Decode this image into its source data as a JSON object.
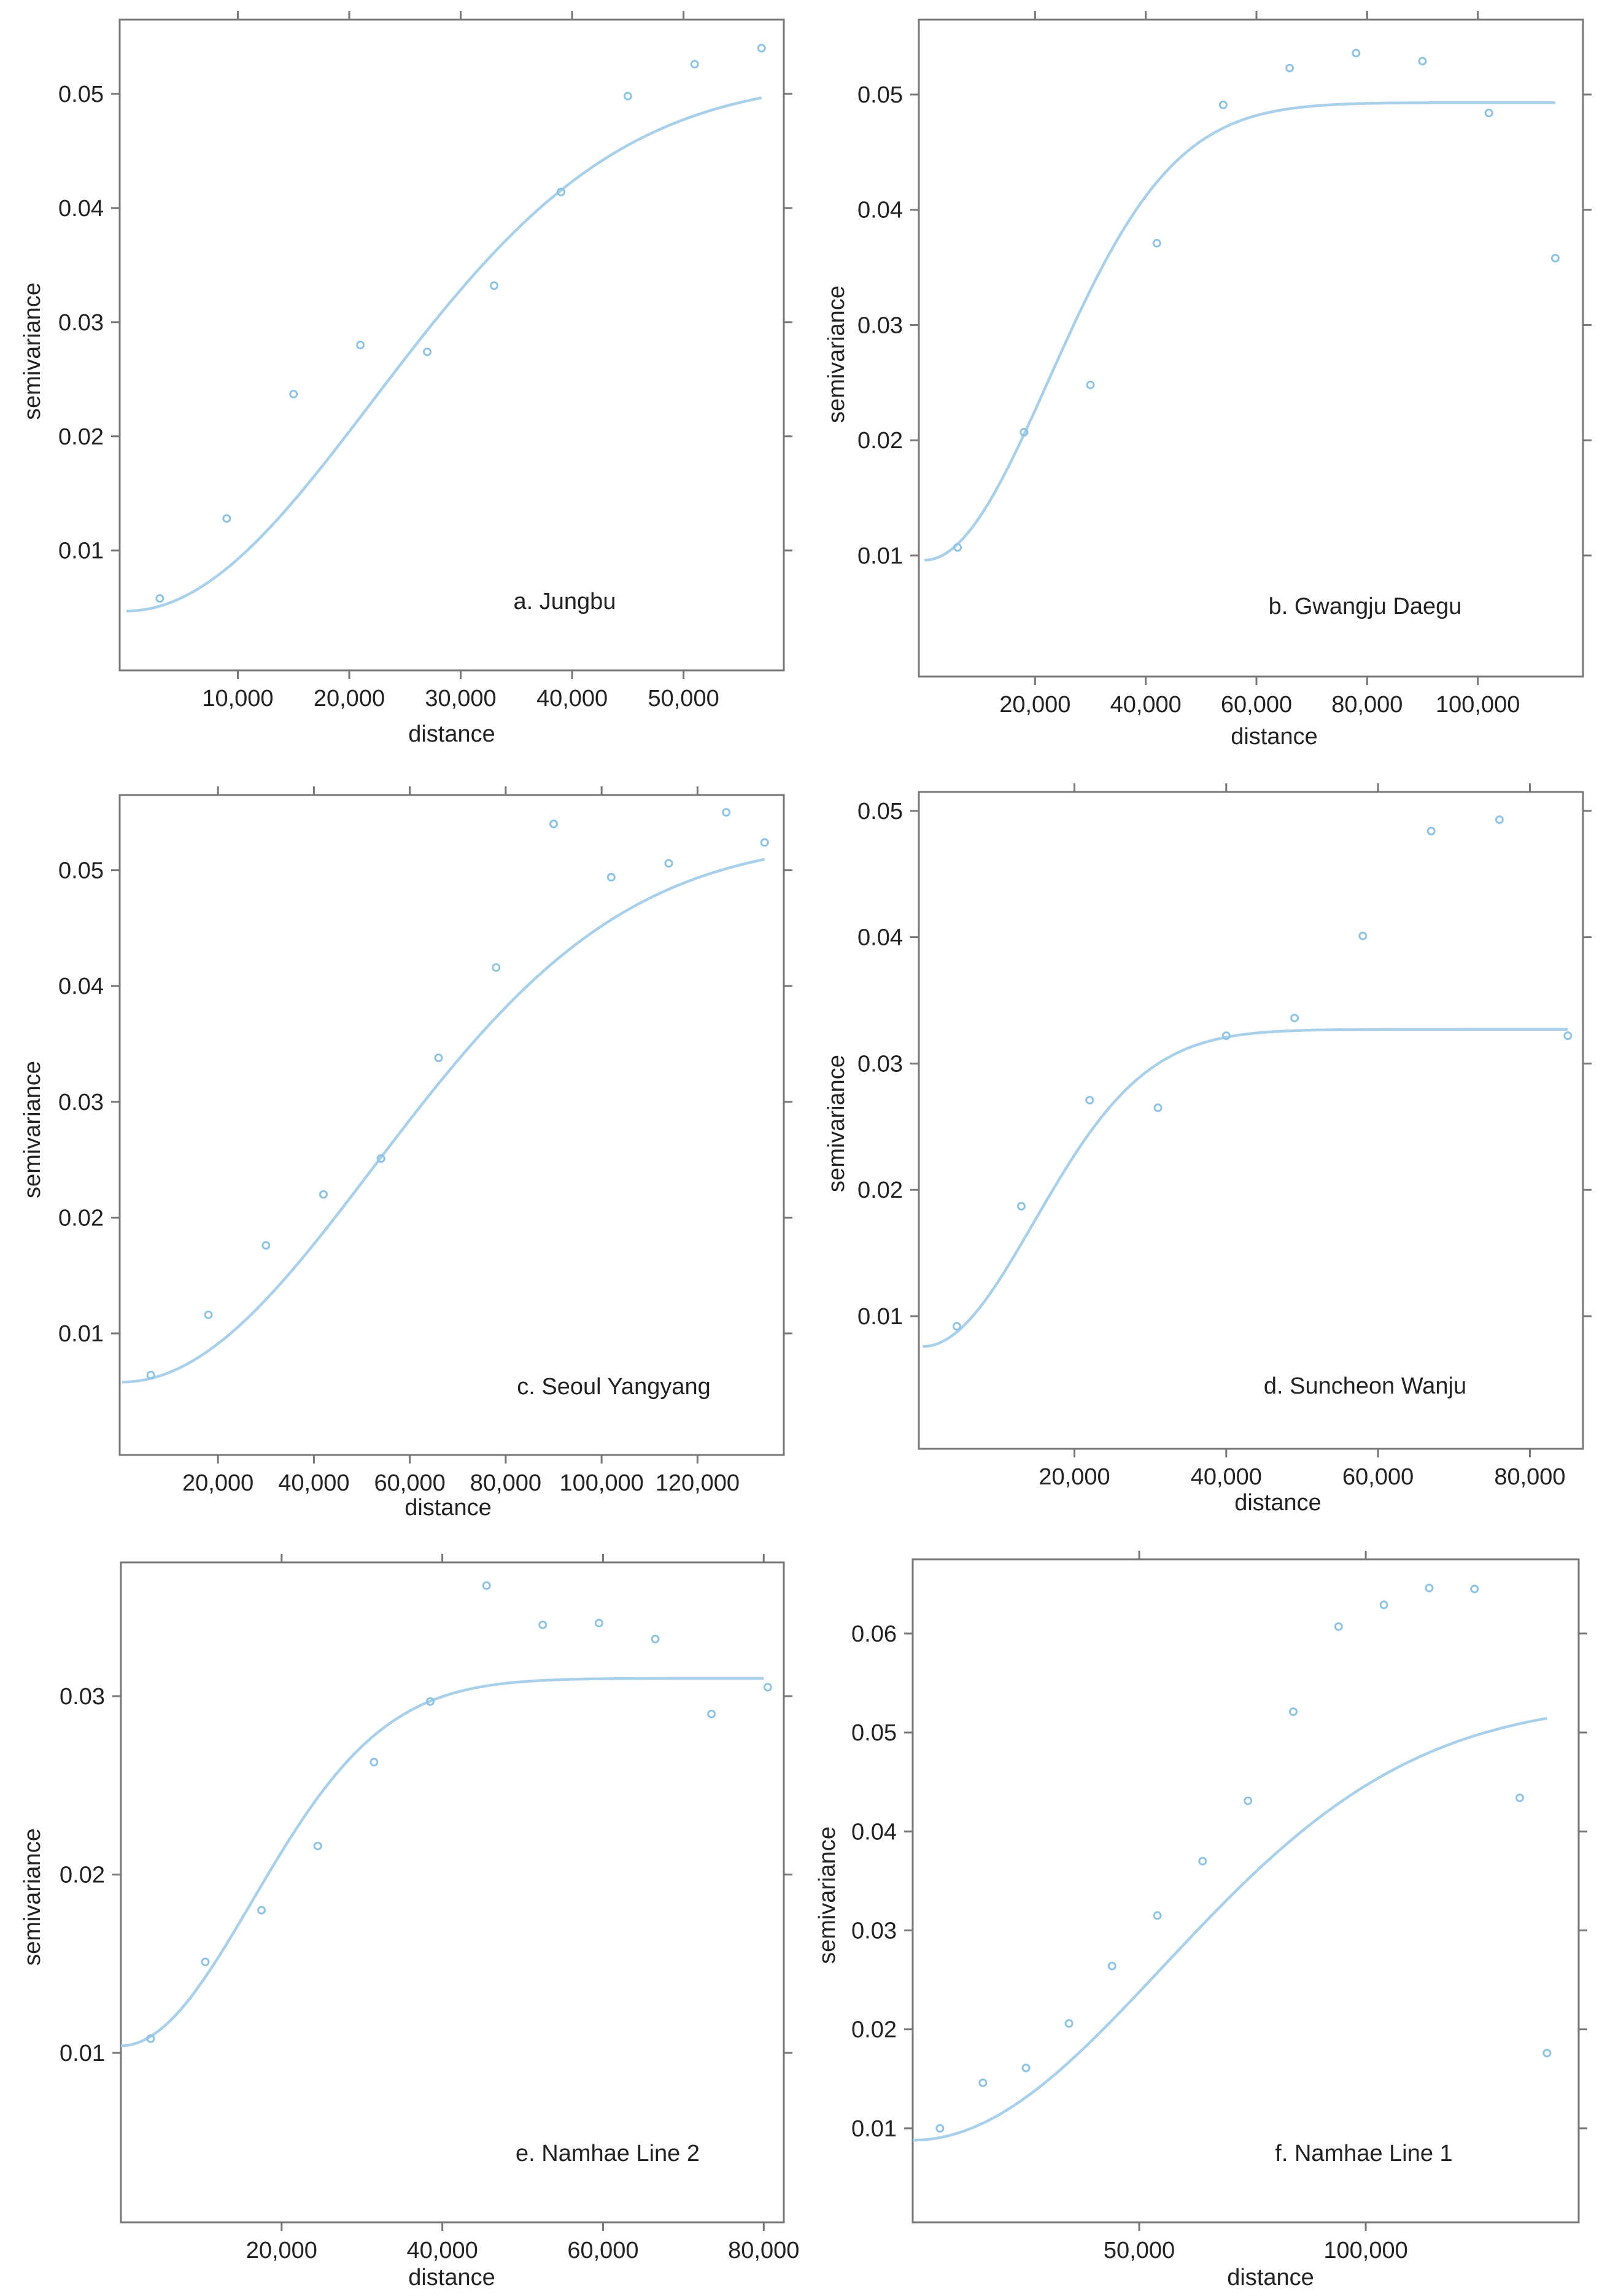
{
  "chart_data": [
    {
      "type": "scatter",
      "title": "a. Jungbu",
      "xlabel": "distance",
      "ylabel": "semivariance",
      "xlim": [
        -600,
        59000
      ],
      "ylim": [
        -0.0005,
        0.0565
      ],
      "xticks": [
        10000,
        20000,
        30000,
        40000,
        50000
      ],
      "xticklabels": [
        "10,000",
        "20,000",
        "30,000",
        "40,000",
        "50,000"
      ],
      "yticks": [
        0.01,
        0.02,
        0.03,
        0.04,
        0.05
      ],
      "yticklabels": [
        "0.01",
        "0.02",
        "0.03",
        "0.04",
        "0.05"
      ],
      "legend": "none",
      "grid": false,
      "series": [
        {
          "name": "empirical semivariogram",
          "x": [
            3000,
            9000,
            15000,
            21000,
            27000,
            33000,
            39000,
            45000,
            51000,
            57000
          ],
          "y": [
            0.0058,
            0.0128,
            0.0237,
            0.028,
            0.0274,
            0.0332,
            0.0414,
            0.0498,
            0.0526,
            0.054
          ]
        },
        {
          "name": "fitted model",
          "model": "gaussian",
          "nugget": 0.0047,
          "sill": 0.0513,
          "range": 54000,
          "x_start": 0,
          "x_end": 57000
        }
      ],
      "colors": {
        "points": "#8ec3e4",
        "curve": "#a9d0ea"
      }
    },
    {
      "type": "scatter",
      "title": "b. Gwangju Daegu",
      "xlabel": "distance",
      "ylabel": "semivariance",
      "xlim": [
        -1000,
        119000
      ],
      "ylim": [
        -0.0005,
        0.0565
      ],
      "xticks": [
        20000,
        40000,
        60000,
        80000,
        100000
      ],
      "xticklabels": [
        "20,000",
        "40,000",
        "60,000",
        "80,000",
        "100,000"
      ],
      "yticks": [
        0.01,
        0.02,
        0.03,
        0.04,
        0.05
      ],
      "yticklabels": [
        "0.01",
        "0.02",
        "0.03",
        "0.04",
        "0.05"
      ],
      "legend": "none",
      "grid": false,
      "series": [
        {
          "name": "empirical semivariogram",
          "x": [
            6000,
            18000,
            30000,
            42000,
            54000,
            66000,
            78000,
            90000,
            102000,
            114000
          ],
          "y": [
            0.0107,
            0.0207,
            0.0248,
            0.0371,
            0.0491,
            0.0523,
            0.0536,
            0.0529,
            0.0484,
            0.0358
          ]
        },
        {
          "name": "fitted model",
          "model": "gaussian",
          "nugget": 0.0096,
          "sill": 0.0493,
          "range": 55000,
          "x_start": 0,
          "x_end": 114000
        }
      ],
      "colors": {
        "points": "#8ec3e4",
        "curve": "#a9d0ea"
      }
    },
    {
      "type": "scatter",
      "title": "c. Seoul Yangyang",
      "xlabel": "distance",
      "ylabel": "semivariance",
      "xlim": [
        -500,
        138000
      ],
      "ylim": [
        -0.0005,
        0.0565
      ],
      "xticks": [
        20000,
        40000,
        60000,
        80000,
        100000,
        120000
      ],
      "xticklabels": [
        "20,000",
        "40,000",
        "60,000",
        "80,000",
        "100,000",
        "120,000"
      ],
      "yticks": [
        0.01,
        0.02,
        0.03,
        0.04,
        0.05
      ],
      "yticklabels": [
        "0.01",
        "0.02",
        "0.03",
        "0.04",
        "0.05"
      ],
      "legend": "none",
      "grid": false,
      "series": [
        {
          "name": "empirical semivariogram",
          "x": [
            6000,
            18000,
            30000,
            42000,
            54000,
            66000,
            78000,
            90000,
            102000,
            114000,
            126000,
            134000
          ],
          "y": [
            0.0064,
            0.0116,
            0.0176,
            0.022,
            0.0251,
            0.0338,
            0.0416,
            0.054,
            0.0494,
            0.0506,
            0.055,
            0.0524
          ]
        },
        {
          "name": "fitted model",
          "model": "gaussian",
          "nugget": 0.0058,
          "sill": 0.0527,
          "range": 128000,
          "x_start": 0,
          "x_end": 134000
        }
      ],
      "colors": {
        "points": "#8ec3e4",
        "curve": "#a9d0ea"
      }
    },
    {
      "type": "scatter",
      "title": "d. Suncheon Wanju",
      "xlabel": "distance",
      "ylabel": "semivariance",
      "xlim": [
        -500,
        87000
      ],
      "ylim": [
        -0.0005,
        0.0515
      ],
      "xticks": [
        20000,
        40000,
        60000,
        80000
      ],
      "xticklabels": [
        "20,000",
        "40,000",
        "60,000",
        "80,000"
      ],
      "yticks": [
        0.01,
        0.02,
        0.03,
        0.04,
        0.05
      ],
      "yticklabels": [
        "0.01",
        "0.02",
        "0.03",
        "0.04",
        "0.05"
      ],
      "legend": "none",
      "grid": false,
      "series": [
        {
          "name": "empirical semivariogram",
          "x": [
            4500,
            13000,
            22000,
            31000,
            40000,
            49000,
            58000,
            67000,
            76000,
            85000
          ],
          "y": [
            0.0092,
            0.0187,
            0.0271,
            0.0265,
            0.0322,
            0.0336,
            0.0401,
            0.0484,
            0.0493,
            0.0322
          ]
        },
        {
          "name": "fitted model",
          "model": "gaussian",
          "nugget": 0.0076,
          "sill": 0.0327,
          "range": 36000,
          "x_start": 0,
          "x_end": 85000
        }
      ],
      "colors": {
        "points": "#8ec3e4",
        "curve": "#a9d0ea"
      }
    },
    {
      "type": "scatter",
      "title": "e. Namhae Line 2",
      "xlabel": "distance",
      "ylabel": "semivariance",
      "xlim": [
        0,
        82500
      ],
      "ylim": [
        0.0005,
        0.0375
      ],
      "xticks": [
        20000,
        40000,
        60000,
        80000
      ],
      "xticklabels": [
        "20,000",
        "40,000",
        "60,000",
        "80,000"
      ],
      "yticks": [
        0.01,
        0.02,
        0.03
      ],
      "yticklabels": [
        "0.01",
        "0.02",
        "0.03"
      ],
      "legend": "none",
      "grid": false,
      "series": [
        {
          "name": "empirical semivariogram",
          "x": [
            3700,
            10500,
            17500,
            24500,
            31500,
            38500,
            45500,
            52500,
            59500,
            66500,
            73500,
            80500
          ],
          "y": [
            0.0108,
            0.0151,
            0.018,
            0.0216,
            0.0263,
            0.0297,
            0.0362,
            0.034,
            0.0341,
            0.0332,
            0.029,
            0.0305
          ]
        },
        {
          "name": "fitted model",
          "model": "gaussian",
          "nugget": 0.0104,
          "sill": 0.031,
          "range": 40000,
          "x_start": 0,
          "x_end": 80000
        }
      ],
      "colors": {
        "points": "#8ec3e4",
        "curve": "#a9d0ea"
      }
    },
    {
      "type": "scatter",
      "title": "f. Namhae Line 1",
      "xlabel": "distance",
      "ylabel": "semivariance",
      "xlim": [
        0,
        147000
      ],
      "ylim": [
        0.0005,
        0.0675
      ],
      "xticks": [
        50000,
        100000
      ],
      "xticklabels": [
        "50,000",
        "100,000"
      ],
      "yticks": [
        0.01,
        0.02,
        0.03,
        0.04,
        0.05,
        0.06
      ],
      "yticklabels": [
        "0.01",
        "0.02",
        "0.03",
        "0.04",
        "0.05",
        "0.06"
      ],
      "legend": "none",
      "grid": false,
      "series": [
        {
          "name": "empirical semivariogram",
          "x": [
            6000,
            15500,
            25000,
            34500,
            44000,
            54000,
            64000,
            74000,
            84000,
            94000,
            104000,
            114000,
            124000,
            134000,
            140000
          ],
          "y": [
            0.01,
            0.0146,
            0.0161,
            0.0206,
            0.0264,
            0.0315,
            0.037,
            0.0431,
            0.0521,
            0.0607,
            0.0629,
            0.0646,
            0.0645,
            0.0434,
            0.0176
          ]
        },
        {
          "name": "fitted model",
          "model": "gaussian",
          "nugget": 0.0088,
          "sill": 0.0532,
          "range": 135000,
          "x_start": 0,
          "x_end": 140000
        }
      ],
      "colors": {
        "points": "#8ec3e4",
        "curve": "#a9d0ea"
      }
    }
  ]
}
